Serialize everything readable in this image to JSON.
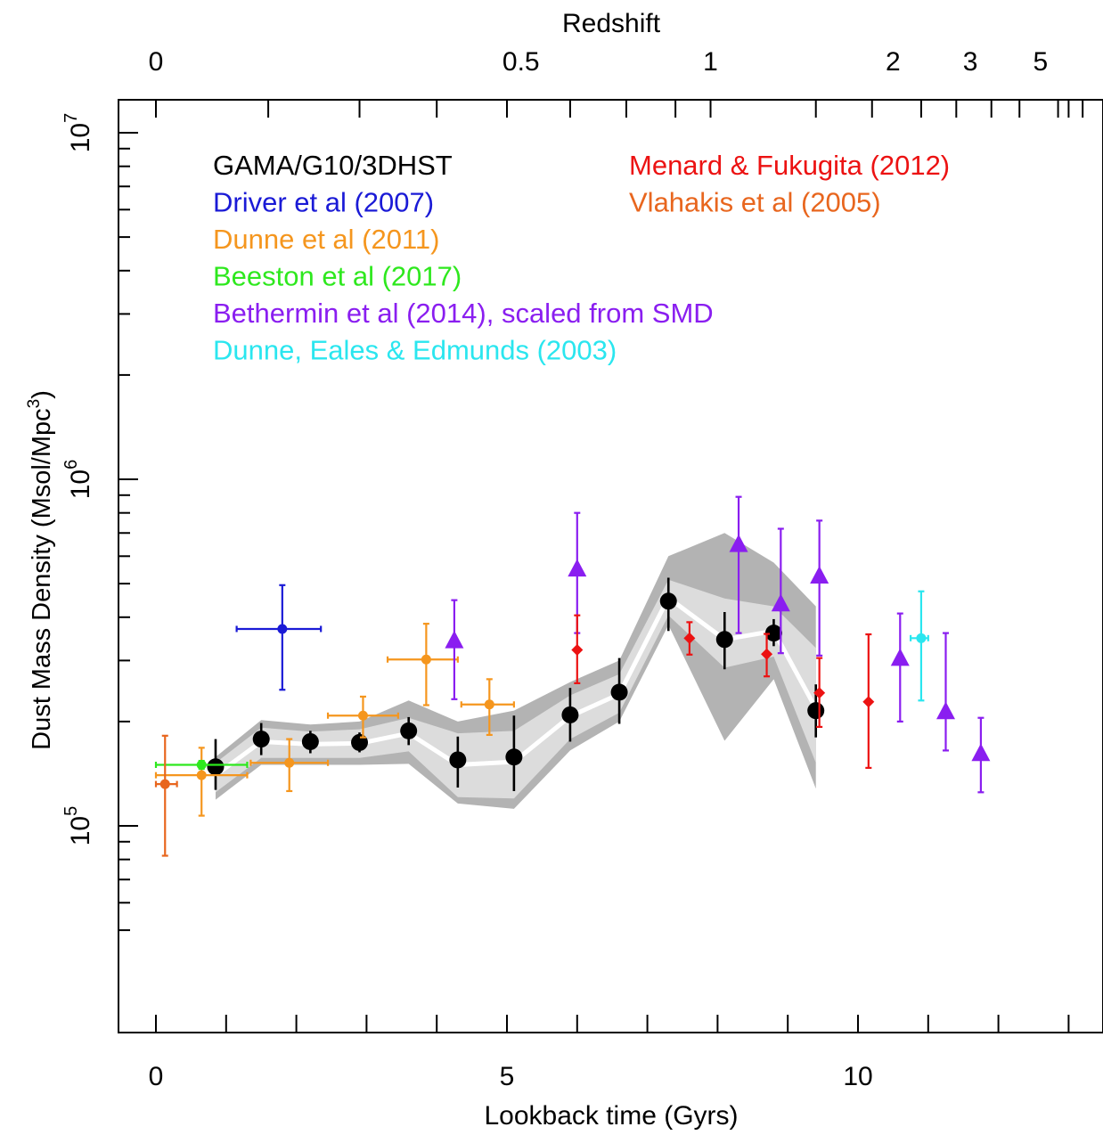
{
  "chart_data": {
    "type": "scatter",
    "xlabel": "Lookback time (Gyrs)",
    "ylabel_main": "Dust Mass Density (Msol/Mpc",
    "ylabel_sup": "3",
    "ylabel_close": ")",
    "top_axis_label": "Redshift",
    "xlim": [
      -0.55,
      13.0
    ],
    "ylim": [
      40000,
      12000000
    ],
    "yscale": "log",
    "x_ticks": [
      0,
      1,
      2,
      3,
      4,
      5,
      6,
      7,
      8,
      9,
      10,
      11,
      12,
      13
    ],
    "x_tick_labels": [
      {
        "x": 0,
        "text": "0"
      },
      {
        "x": 5,
        "text": "5"
      },
      {
        "x": 10,
        "text": "10"
      }
    ],
    "y_major": [
      {
        "v": 100000,
        "base": "10",
        "exp": "5"
      },
      {
        "v": 1000000,
        "base": "10",
        "exp": "6"
      },
      {
        "v": 10000000,
        "base": "10",
        "exp": "7"
      }
    ],
    "y_minor": [
      50000,
      60000,
      70000,
      80000,
      90000,
      200000,
      300000,
      400000,
      500000,
      600000,
      700000,
      800000,
      900000,
      2000000,
      3000000,
      4000000,
      5000000,
      6000000,
      7000000,
      8000000,
      9000000
    ],
    "top_ticks": [
      0,
      1.6,
      2.9,
      4.0,
      5.0,
      5.9,
      6.7,
      7.4,
      7.9,
      9.4,
      10.2,
      10.9,
      11.4,
      11.9,
      12.3,
      12.85,
      13.0,
      13.2
    ],
    "top_tick_labels": [
      {
        "x": 0,
        "text": "0"
      },
      {
        "x": 5.2,
        "text": "0.5"
      },
      {
        "x": 7.9,
        "text": "1"
      },
      {
        "x": 10.5,
        "text": "2"
      },
      {
        "x": 11.6,
        "text": "3"
      },
      {
        "x": 12.6,
        "text": "5"
      }
    ],
    "bands": [
      {
        "name": "outer",
        "color": "#b3b3b3",
        "x": [
          0.85,
          1.5,
          2.2,
          2.9,
          3.6,
          4.3,
          5.1,
          5.9,
          6.6,
          7.3,
          8.1,
          8.8,
          9.4
        ],
        "upper": [
          158000,
          202000,
          196000,
          200000,
          230000,
          200000,
          215000,
          260000,
          300000,
          600000,
          700000,
          575000,
          430000
        ],
        "lower": [
          119000,
          150000,
          150000,
          150000,
          151000,
          116000,
          112000,
          165000,
          200000,
          380000,
          176000,
          265000,
          128000
        ]
      },
      {
        "name": "inner",
        "color": "#dcdcdc",
        "x": [
          0.85,
          1.5,
          2.2,
          2.9,
          3.6,
          4.3,
          5.1,
          5.9,
          6.6,
          7.3,
          8.1,
          8.8,
          9.4
        ],
        "upper": [
          152000,
          192000,
          187000,
          190000,
          205000,
          185000,
          188000,
          238000,
          274000,
          513000,
          453000,
          430000,
          326000
        ],
        "lower": [
          125000,
          157000,
          157000,
          157000,
          164000,
          121000,
          120000,
          178000,
          212000,
          405000,
          286000,
          308000,
          152000
        ]
      }
    ],
    "median_line": {
      "color": "#ffffff",
      "x": [
        0.85,
        1.5,
        2.2,
        2.9,
        3.6,
        4.3,
        5.1,
        5.9,
        6.6,
        7.3,
        8.1,
        8.8,
        9.4
      ],
      "y": [
        140000,
        175000,
        172000,
        173000,
        185000,
        150000,
        153000,
        207000,
        240000,
        455000,
        345000,
        365000,
        218000
      ]
    },
    "series": [
      {
        "name": "GAMA/G10/3DHST",
        "color": "#000000",
        "marker": "circle-large",
        "points": [
          {
            "x": 0.85,
            "y": 148000,
            "ylo": 127000,
            "yhi": 178000
          },
          {
            "x": 1.5,
            "y": 178000,
            "ylo": 160000,
            "yhi": 198000
          },
          {
            "x": 2.2,
            "y": 175000,
            "ylo": 162000,
            "yhi": 188000
          },
          {
            "x": 2.9,
            "y": 174000,
            "ylo": 163000,
            "yhi": 186000
          },
          {
            "x": 3.6,
            "y": 188000,
            "ylo": 171000,
            "yhi": 206000
          },
          {
            "x": 4.3,
            "y": 155000,
            "ylo": 129000,
            "yhi": 181000
          },
          {
            "x": 5.1,
            "y": 158000,
            "ylo": 126000,
            "yhi": 208000
          },
          {
            "x": 5.9,
            "y": 209000,
            "ylo": 175000,
            "yhi": 250000
          },
          {
            "x": 6.6,
            "y": 243000,
            "ylo": 197000,
            "yhi": 305000
          },
          {
            "x": 7.3,
            "y": 445000,
            "ylo": 365000,
            "yhi": 520000
          },
          {
            "x": 8.1,
            "y": 345000,
            "ylo": 283000,
            "yhi": 414000
          },
          {
            "x": 8.8,
            "y": 360000,
            "ylo": 330000,
            "yhi": 395000
          },
          {
            "x": 9.4,
            "y": 215000,
            "ylo": 180000,
            "yhi": 256000
          }
        ]
      },
      {
        "name": "Driver et al (2007)",
        "color": "#1a1ad6",
        "marker": "circle-small",
        "points": [
          {
            "x": 1.8,
            "y": 370000,
            "ylo": 247000,
            "yhi": 495000,
            "xlo": 1.15,
            "xhi": 2.35
          }
        ]
      },
      {
        "name": "Dunne et al (2011)",
        "color": "#f5961e",
        "marker": "circle-small",
        "points": [
          {
            "x": 0.65,
            "y": 140000,
            "ylo": 107000,
            "yhi": 168000,
            "xlo": 0.0,
            "xhi": 1.3
          },
          {
            "x": 1.9,
            "y": 152000,
            "ylo": 126000,
            "yhi": 178000,
            "xlo": 1.35,
            "xhi": 2.45
          },
          {
            "x": 2.95,
            "y": 208000,
            "ylo": 180000,
            "yhi": 236000,
            "xlo": 2.45,
            "xhi": 3.45
          },
          {
            "x": 3.85,
            "y": 302000,
            "ylo": 223000,
            "yhi": 383000,
            "xlo": 3.3,
            "xhi": 4.3
          },
          {
            "x": 4.75,
            "y": 224000,
            "ylo": 183000,
            "yhi": 265000,
            "xlo": 4.35,
            "xhi": 5.1
          }
        ]
      },
      {
        "name": "Beeston et al (2017)",
        "color": "#2ee81e",
        "marker": "circle-small",
        "points": [
          {
            "x": 0.65,
            "y": 150000,
            "ylo": 146000,
            "yhi": 154000,
            "xlo": 0.0,
            "xhi": 1.3
          }
        ]
      },
      {
        "name": "Bethermin et al (2014), scaled from SMD",
        "color": "#8a1ef0",
        "marker": "triangle",
        "points": [
          {
            "x": 4.25,
            "y": 343000,
            "ylo": 232000,
            "yhi": 448000
          },
          {
            "x": 6.0,
            "y": 552000,
            "ylo": 360000,
            "yhi": 800000
          },
          {
            "x": 8.3,
            "y": 650000,
            "ylo": 360000,
            "yhi": 890000
          },
          {
            "x": 8.9,
            "y": 438000,
            "ylo": 315000,
            "yhi": 720000
          },
          {
            "x": 9.45,
            "y": 527000,
            "ylo": 310000,
            "yhi": 760000
          },
          {
            "x": 10.6,
            "y": 305000,
            "ylo": 200000,
            "yhi": 410000
          },
          {
            "x": 11.25,
            "y": 214000,
            "ylo": 165000,
            "yhi": 360000
          },
          {
            "x": 11.75,
            "y": 162000,
            "ylo": 125000,
            "yhi": 205000
          }
        ]
      },
      {
        "name": "Dunne, Eales & Edmunds (2003)",
        "color": "#2ae6ef",
        "marker": "circle-small",
        "points": [
          {
            "x": 10.9,
            "y": 348000,
            "ylo": 230000,
            "yhi": 475000,
            "xlo": 10.75,
            "xhi": 11.0
          }
        ]
      },
      {
        "name": "Menard & Fukugita (2012)",
        "color": "#ec1212",
        "marker": "diamond",
        "points": [
          {
            "x": 6.0,
            "y": 322000,
            "ylo": 258000,
            "yhi": 405000
          },
          {
            "x": 7.6,
            "y": 348000,
            "ylo": 312000,
            "yhi": 387000
          },
          {
            "x": 8.7,
            "y": 313000,
            "ylo": 270000,
            "yhi": 358000
          },
          {
            "x": 9.45,
            "y": 242000,
            "ylo": 193000,
            "yhi": 305000
          },
          {
            "x": 10.15,
            "y": 228000,
            "ylo": 147000,
            "yhi": 357000
          }
        ]
      },
      {
        "name": "Vlahakis et al (2005)",
        "color": "#e8661e",
        "marker": "circle-small",
        "points": [
          {
            "x": 0.13,
            "y": 132000,
            "ylo": 82000,
            "yhi": 182000,
            "xlo": 0.0,
            "xhi": 0.3
          }
        ]
      }
    ],
    "legend": [
      {
        "text": "GAMA/G10/3DHST",
        "color": "#000000",
        "column": "left"
      },
      {
        "text": "Driver et al (2007)",
        "color": "#1a1ad6",
        "column": "left"
      },
      {
        "text": "Dunne et al (2011)",
        "color": "#f5961e",
        "column": "left"
      },
      {
        "text": "Beeston et al (2017)",
        "color": "#2ee81e",
        "column": "left"
      },
      {
        "text": "Bethermin et al (2014), scaled from SMD",
        "color": "#8a1ef0",
        "column": "left"
      },
      {
        "text": "Dunne, Eales & Edmunds (2003)",
        "color": "#2ae6ef",
        "column": "left"
      },
      {
        "text": "Menard & Fukugita (2012)",
        "color": "#ec1212",
        "column": "right"
      },
      {
        "text": "Vlahakis et al (2005)",
        "color": "#e8661e",
        "column": "right"
      }
    ]
  }
}
